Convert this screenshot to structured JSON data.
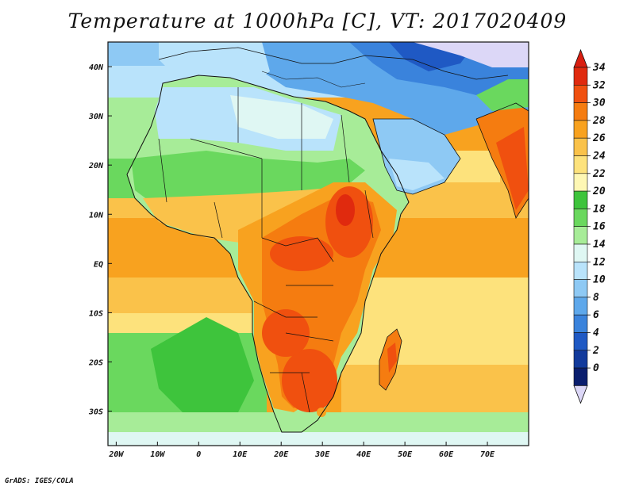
{
  "title": "Temperature at 1000hPa [C], VT: 2017020409",
  "credit": "GrADS: IGES/COLA",
  "x_ticks": [
    {
      "label": "20W",
      "lon": -20
    },
    {
      "label": "10W",
      "lon": -10
    },
    {
      "label": "0",
      "lon": 0
    },
    {
      "label": "10E",
      "lon": 10
    },
    {
      "label": "20E",
      "lon": 20
    },
    {
      "label": "30E",
      "lon": 30
    },
    {
      "label": "40E",
      "lon": 40
    },
    {
      "label": "50E",
      "lon": 50
    },
    {
      "label": "60E",
      "lon": 60
    },
    {
      "label": "70E",
      "lon": 70
    }
  ],
  "y_ticks": [
    {
      "label": "40N",
      "lat": 40
    },
    {
      "label": "30N",
      "lat": 30
    },
    {
      "label": "20N",
      "lat": 20
    },
    {
      "label": "10N",
      "lat": 10
    },
    {
      "label": "EQ",
      "lat": 0
    },
    {
      "label": "10S",
      "lat": -10
    },
    {
      "label": "20S",
      "lat": -20
    },
    {
      "label": "30S",
      "lat": -30
    }
  ],
  "extent": {
    "lon_min": -22,
    "lon_max": 80,
    "lat_min": -37,
    "lat_max": 45
  },
  "colorbar": {
    "levels": [
      {
        "label": "34",
        "value": 34
      },
      {
        "label": "32",
        "value": 32
      },
      {
        "label": "30",
        "value": 30
      },
      {
        "label": "28",
        "value": 28
      },
      {
        "label": "26",
        "value": 26
      },
      {
        "label": "24",
        "value": 24
      },
      {
        "label": "22",
        "value": 22
      },
      {
        "label": "20",
        "value": 20
      },
      {
        "label": "18",
        "value": 18
      },
      {
        "label": "16",
        "value": 16
      },
      {
        "label": "14",
        "value": 14
      },
      {
        "label": "12",
        "value": 12
      },
      {
        "label": "10",
        "value": 10
      },
      {
        "label": "8",
        "value": 8
      },
      {
        "label": "6",
        "value": 6
      },
      {
        "label": "4",
        "value": 4
      },
      {
        "label": "2",
        "value": 2
      },
      {
        "label": "0",
        "value": 0
      }
    ],
    "colors": [
      "#e02a0e",
      "#f0500f",
      "#f57c10",
      "#f8a21f",
      "#fac24a",
      "#fde27c",
      "#fef7b4",
      "#3ec43c",
      "#6ad85e",
      "#a7ec98",
      "#dff7f3",
      "#b9e3fb",
      "#8ec9f4",
      "#5ea8eb",
      "#3a83dc",
      "#1f59c4",
      "#123a9c",
      "#0a1e6e"
    ],
    "over_color": "#d91e10",
    "under_color": "#dcd7f7"
  }
}
